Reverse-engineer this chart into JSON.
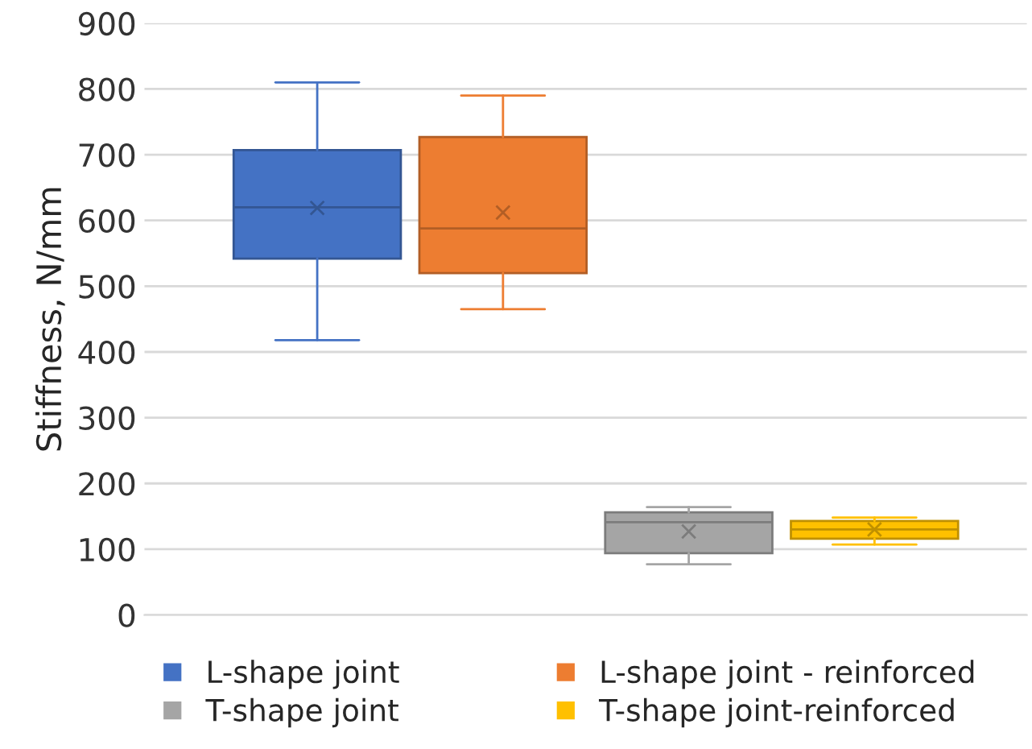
{
  "chart_data": {
    "type": "box",
    "ylabel": "Stiffness, N/mm",
    "categories": [
      null
    ],
    "ylim": [
      0,
      900
    ],
    "yticks": [
      0,
      100,
      200,
      300,
      400,
      500,
      600,
      700,
      800,
      900
    ],
    "grid": "y",
    "legend": "bottom",
    "series": [
      {
        "name": "L-shape joint",
        "color": "#4472c4",
        "boxes": [
          {
            "low": 418,
            "q1": 542,
            "median": 620,
            "q3": 707,
            "high": 810,
            "mean": 619
          }
        ]
      },
      {
        "name": "L-shape joint - reinforced",
        "color": "#ed7d31",
        "boxes": [
          {
            "low": 465,
            "q1": 520,
            "median": 588,
            "q3": 727,
            "high": 790,
            "mean": 612
          }
        ]
      },
      {
        "name": "T-shape joint",
        "color": "#a5a5a5",
        "boxes": [
          {
            "low": 77,
            "q1": 94,
            "median": 141,
            "q3": 156,
            "high": 164,
            "mean": 127
          }
        ]
      },
      {
        "name": "T-shape joint-reinforced",
        "color": "#ffc000",
        "boxes": [
          {
            "low": 107,
            "q1": 116,
            "median": 130,
            "q3": 143,
            "high": 148,
            "mean": 130
          }
        ]
      }
    ]
  }
}
